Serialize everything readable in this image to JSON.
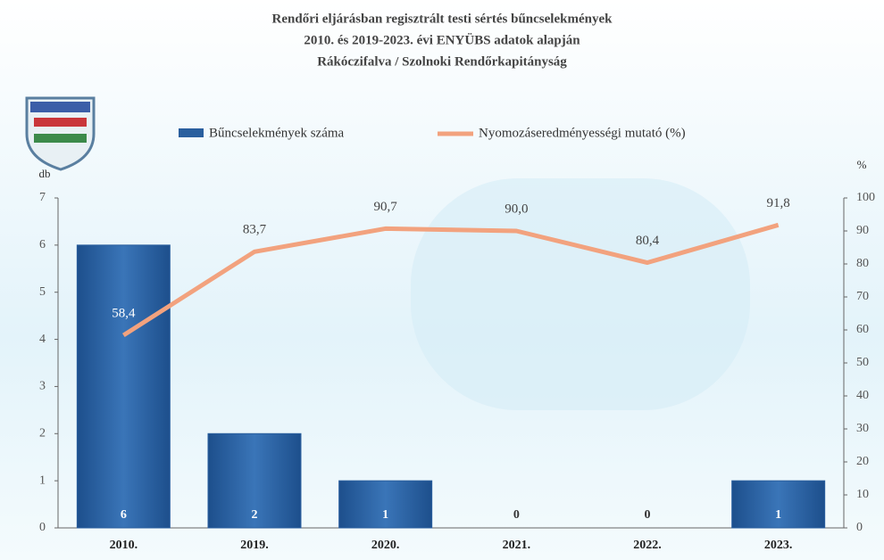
{
  "chart_data": {
    "type": "bar",
    "title_lines": [
      "Rendőri eljárásban regisztrált testi sértés bűncselekmények",
      "2010. és 2019-2023. évi ENYÜBS adatok alapján",
      "Rákóczifalva / Szolnoki Rendőrkapitányság"
    ],
    "y_label": "db",
    "y2_label": "%",
    "categories": [
      "2010.",
      "2019.",
      "2020.",
      "2021.",
      "2022.",
      "2023."
    ],
    "series": [
      {
        "name": "Bűncselekmények száma",
        "type": "bar",
        "color": "#2a5f9e",
        "values": [
          6,
          2,
          1,
          0,
          0,
          1
        ]
      },
      {
        "name": "Nyomozáseredményességi mutató (%)",
        "type": "line",
        "axis": "y2",
        "color": "#f2a27e",
        "values": [
          58.4,
          83.7,
          90.7,
          90.0,
          80.4,
          91.8
        ],
        "value_labels": [
          "58,4",
          "83,7",
          "90,7",
          "90,0",
          "80,4",
          "91,8"
        ]
      }
    ],
    "ylim": [
      0,
      7
    ],
    "yticks": [
      0,
      1,
      2,
      3,
      4,
      5,
      6,
      7
    ],
    "y2lim": [
      0,
      100
    ],
    "y2ticks": [
      0,
      10,
      20,
      30,
      40,
      50,
      60,
      70,
      80,
      90,
      100
    ]
  }
}
